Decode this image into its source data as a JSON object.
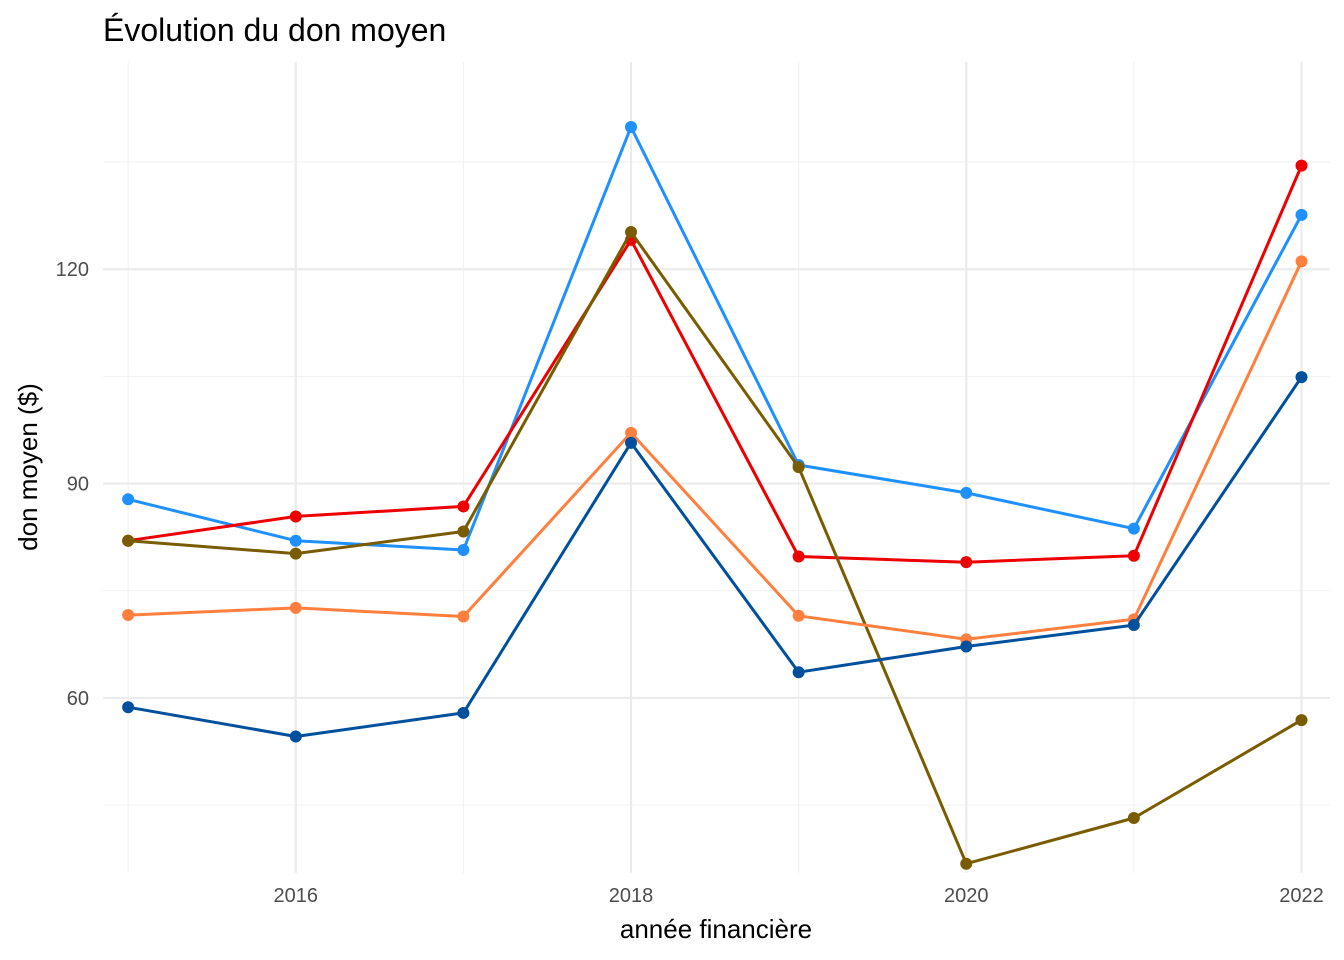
{
  "chart_data": {
    "type": "line",
    "title": "Évolution du don moyen",
    "xlabel": "année financière",
    "ylabel": "don moyen ($)",
    "x": [
      2015,
      2016,
      2017,
      2018,
      2019,
      2020,
      2021,
      2022
    ],
    "xlim": [
      2014.85,
      2022.17
    ],
    "ylim": [
      35.5,
      149
    ],
    "x_ticks": [
      2016,
      2018,
      2020,
      2022
    ],
    "x_tick_labels": [
      "2016",
      "2018",
      "2020",
      "2022"
    ],
    "y_ticks": [
      60,
      90,
      120
    ],
    "y_tick_labels": [
      "60",
      "90",
      "120"
    ],
    "grid": true,
    "legend": "none",
    "series": [
      {
        "color": "#1E90FF",
        "values": [
          87.8,
          82.0,
          80.7,
          139.9,
          92.6,
          88.7,
          83.7,
          127.6
        ]
      },
      {
        "color": "#EE0000",
        "values": [
          82.0,
          85.4,
          86.8,
          124.1,
          79.8,
          79.0,
          79.9,
          134.5
        ]
      },
      {
        "color": "#7A5C00",
        "values": [
          82.0,
          80.2,
          83.3,
          125.2,
          92.3,
          36.8,
          43.2,
          56.9
        ]
      },
      {
        "color": "#FF7F3E",
        "values": [
          71.6,
          72.6,
          71.4,
          97.1,
          71.5,
          68.2,
          71.0,
          121.1
        ]
      },
      {
        "color": "#00509D",
        "values": [
          58.7,
          54.6,
          57.9,
          95.7,
          63.6,
          67.2,
          70.2,
          104.9
        ]
      }
    ]
  }
}
